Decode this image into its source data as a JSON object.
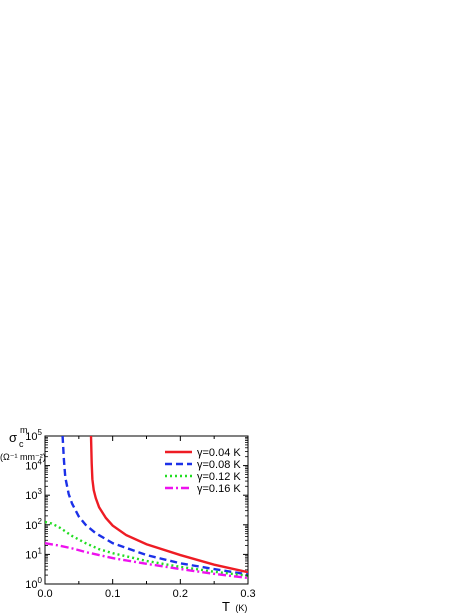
{
  "chart_data": {
    "type": "line",
    "ylabel": {
      "symbol": "σ",
      "subscript": "c",
      "superscript": "m",
      "units": "(Ω⁻¹ mm⁻²)"
    },
    "xlabel": {
      "text": "T",
      "unit": "(K)"
    },
    "xlim": [
      0,
      0.3
    ],
    "ylim": [
      1,
      100000
    ],
    "yscale": "log",
    "x_ticks": [
      "0.0",
      "0.1",
      "0.2",
      "0.3"
    ],
    "x_tick_values": [
      0,
      0.1,
      0.2,
      0.3
    ],
    "y_ticks": [
      {
        "base": "10",
        "exp": "0",
        "value": 1
      },
      {
        "base": "10",
        "exp": "1",
        "value": 10
      },
      {
        "base": "10",
        "exp": "2",
        "value": 100
      },
      {
        "base": "10",
        "exp": "3",
        "value": 1000
      },
      {
        "base": "10",
        "exp": "4",
        "value": 10000
      },
      {
        "base": "10",
        "exp": "5",
        "value": 100000
      }
    ],
    "legend_position": "top-right",
    "grid": false,
    "series": [
      {
        "name": "γ=0.04 K",
        "color": "#ee1c24",
        "style": "solid",
        "points": [
          [
            0.068,
            100000
          ],
          [
            0.069,
            12000
          ],
          [
            0.07,
            3500
          ],
          [
            0.072,
            1500
          ],
          [
            0.075,
            800
          ],
          [
            0.08,
            390
          ],
          [
            0.09,
            170
          ],
          [
            0.1,
            94
          ],
          [
            0.12,
            45
          ],
          [
            0.15,
            22
          ],
          [
            0.2,
            9.5
          ],
          [
            0.25,
            4.5
          ],
          [
            0.3,
            2.5
          ]
        ]
      },
      {
        "name": "γ=0.08 K",
        "color": "#1c31e8",
        "style": "dashed",
        "points": [
          [
            0.026,
            100000
          ],
          [
            0.028,
            15000
          ],
          [
            0.03,
            4000
          ],
          [
            0.035,
            1100
          ],
          [
            0.04,
            520
          ],
          [
            0.05,
            190
          ],
          [
            0.06,
            100
          ],
          [
            0.075,
            52
          ],
          [
            0.1,
            24
          ],
          [
            0.15,
            9.5
          ],
          [
            0.2,
            5
          ],
          [
            0.25,
            3.2
          ],
          [
            0.3,
            2.1
          ]
        ]
      },
      {
        "name": "γ=0.12 K",
        "color": "#22dd22",
        "style": "dotted",
        "points": [
          [
            0,
            125
          ],
          [
            0.01,
            110
          ],
          [
            0.02,
            85
          ],
          [
            0.03,
            60
          ],
          [
            0.04,
            42
          ],
          [
            0.06,
            24
          ],
          [
            0.08,
            15
          ],
          [
            0.1,
            11
          ],
          [
            0.15,
            6
          ],
          [
            0.2,
            3.8
          ],
          [
            0.25,
            2.6
          ],
          [
            0.3,
            1.9
          ]
        ]
      },
      {
        "name": "γ=0.16 K",
        "color": "#ee11ee",
        "style": "dashdot",
        "points": [
          [
            0,
            24
          ],
          [
            0.02,
            20
          ],
          [
            0.04,
            16
          ],
          [
            0.06,
            12
          ],
          [
            0.08,
            9.5
          ],
          [
            0.1,
            7.5
          ],
          [
            0.15,
            4.8
          ],
          [
            0.2,
            3.2
          ],
          [
            0.25,
            2.2
          ],
          [
            0.3,
            1.6
          ]
        ]
      }
    ]
  }
}
